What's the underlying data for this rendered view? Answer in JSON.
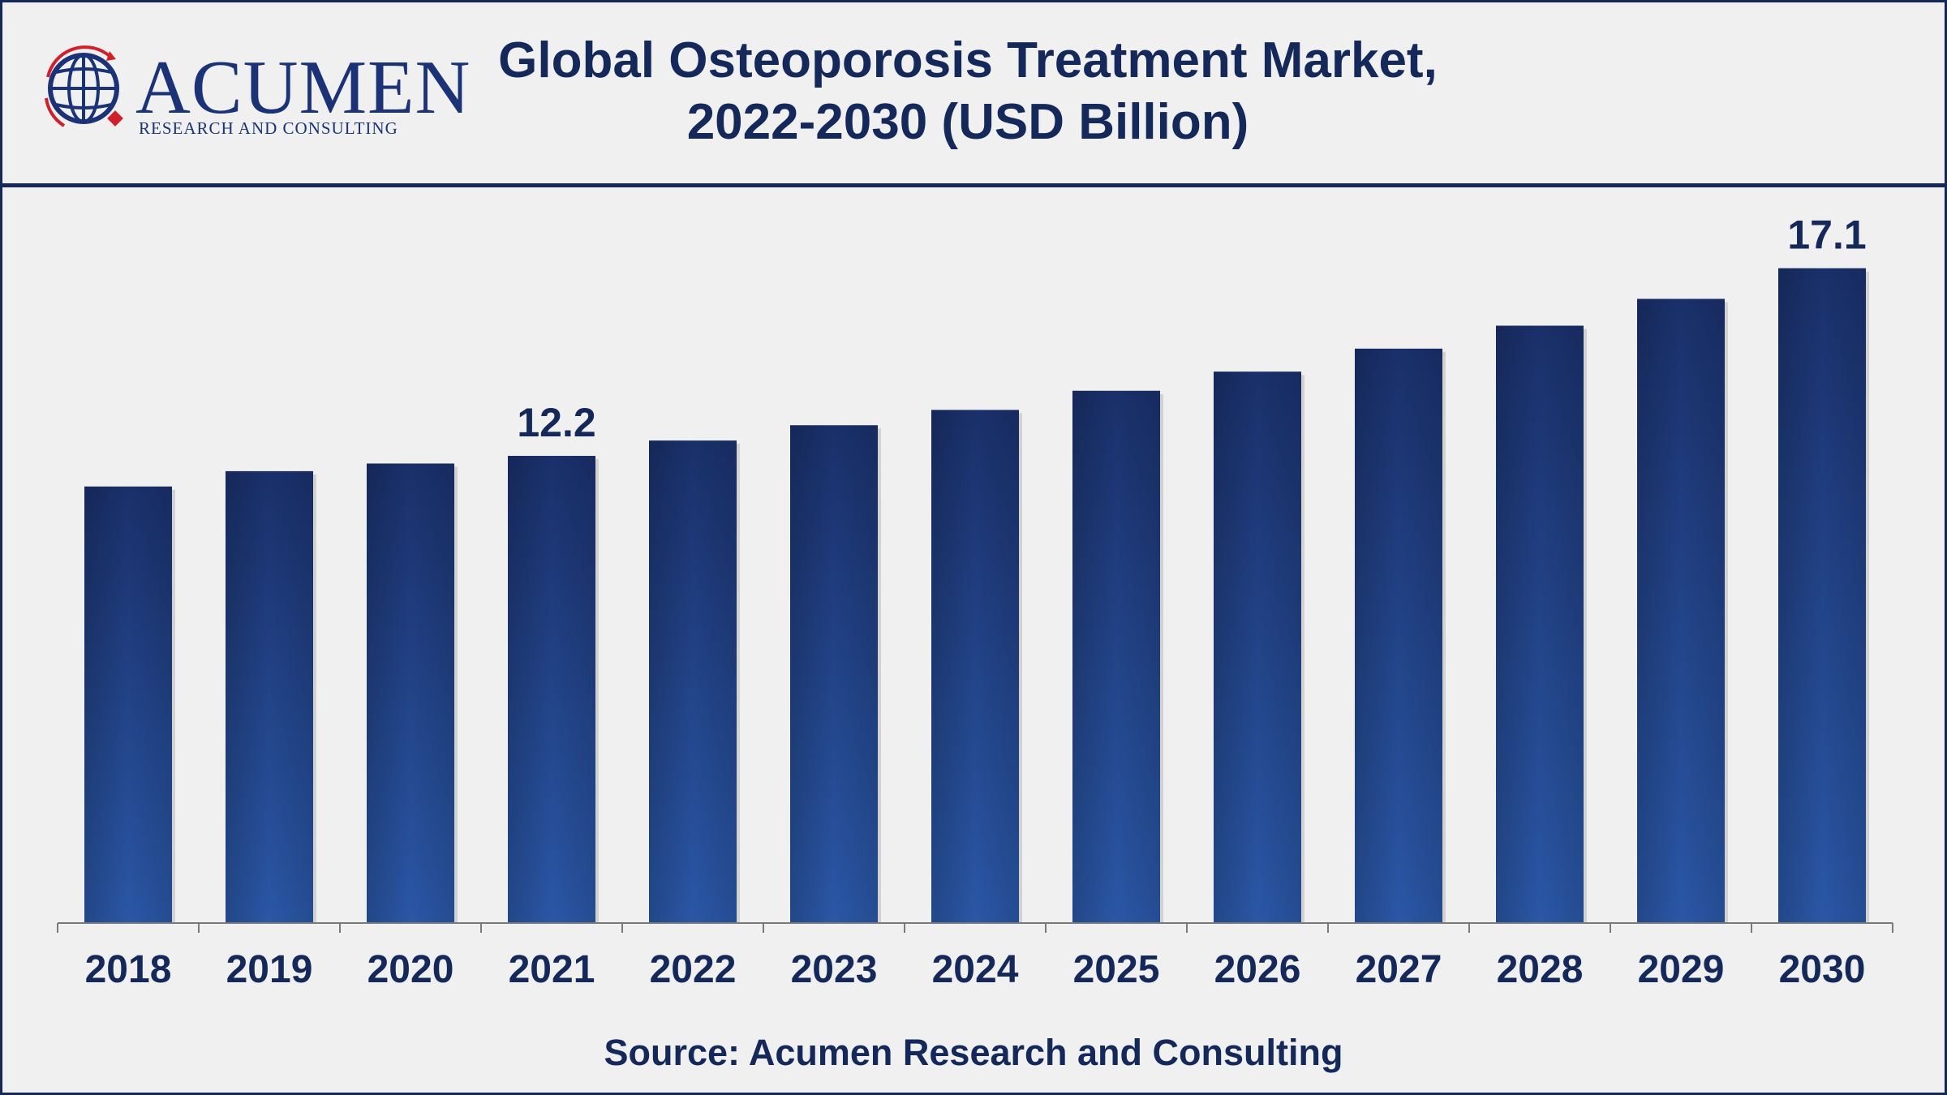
{
  "logo": {
    "word": "ACUMEN",
    "subtitle": "RESEARCH AND CONSULTING"
  },
  "title_line1": "Global Osteoporosis Treatment Market,",
  "title_line2": "2022-2030 (USD Billion)",
  "source": "Source: Acumen Research and Consulting",
  "colors": {
    "frame": "#14285a",
    "bar_dark": "#1a306b",
    "bar_light": "#2a57a6",
    "text": "#14285a",
    "logo_red": "#d0202a"
  },
  "chart_data": {
    "type": "bar",
    "title": "Global Osteoporosis Treatment Market, 2022-2030 (USD Billion)",
    "categories": [
      "2018",
      "2019",
      "2020",
      "2021",
      "2022",
      "2023",
      "2024",
      "2025",
      "2026",
      "2027",
      "2028",
      "2029",
      "2030"
    ],
    "values": [
      11.4,
      11.8,
      12.0,
      12.2,
      12.6,
      13.0,
      13.4,
      13.9,
      14.4,
      15.0,
      15.6,
      16.3,
      17.1
    ],
    "data_labels": [
      {
        "category": "2021",
        "text": "12.2"
      },
      {
        "category": "2030",
        "text": "17.1"
      }
    ],
    "xlabel": "",
    "ylabel": "",
    "ylim": [
      0,
      19
    ],
    "grid": false,
    "legend": "none"
  }
}
